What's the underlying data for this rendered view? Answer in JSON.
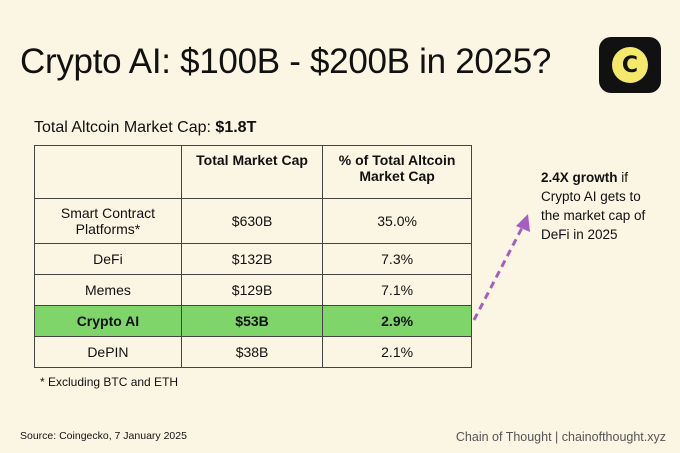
{
  "title": "Crypto AI: $100B - $200B in 2025?",
  "logo": {
    "glyph": "C",
    "icon": "chain-of-thought-logo-icon"
  },
  "subtitle": {
    "label": "Total Altcoin Market Cap:",
    "value": "$1.8T"
  },
  "table": {
    "headers": [
      "",
      "Total Market Cap",
      "% of Total Altcoin Market Cap"
    ],
    "rows": [
      {
        "category": "Smart Contract Platforms*",
        "market_cap": "$630B",
        "percent": "35.0%"
      },
      {
        "category": "DeFi",
        "market_cap": "$132B",
        "percent": "7.3%"
      },
      {
        "category": "Memes",
        "market_cap": "$129B",
        "percent": "7.1%"
      },
      {
        "category": "Crypto AI",
        "market_cap": "$53B",
        "percent": "2.9%",
        "highlight": true
      },
      {
        "category": "DePIN",
        "market_cap": "$38B",
        "percent": "2.1%"
      }
    ],
    "highlight_color": "#7fd46a"
  },
  "annotation": {
    "bold": "2.4X growth",
    "rest": " if Crypto AI gets to the market cap of DeFi in 2025",
    "arrow_color": "#a45fc1"
  },
  "footnote": "* Excluding BTC and ETH",
  "source": "Source: Coingecko, 7 January 2025",
  "brand": "Chain of Thought | chainofthought.xyz"
}
